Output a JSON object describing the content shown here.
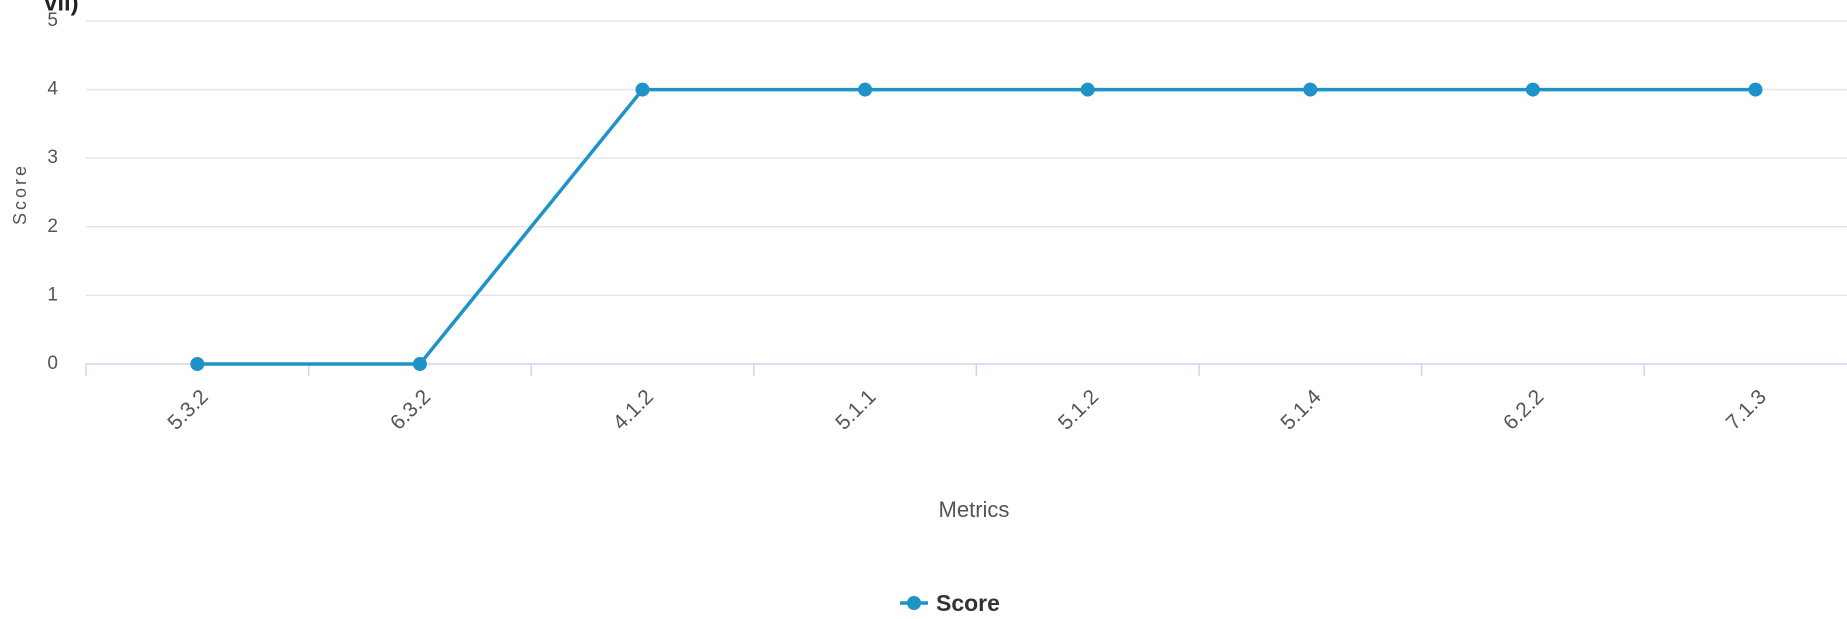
{
  "chart_data": {
    "type": "line",
    "title": "vii)",
    "x_label": "Metrics",
    "y_label": "Score",
    "categories": [
      "5.3.2",
      "6.3.2",
      "4.1.2",
      "5.1.1",
      "5.1.2",
      "5.1.4",
      "6.2.2",
      "7.1.3"
    ],
    "series": [
      {
        "name": "Score",
        "color": "#1f93c8",
        "values": [
          0,
          0,
          4,
          4,
          4,
          4,
          4,
          4
        ]
      }
    ],
    "ylim": [
      0,
      5
    ],
    "yticks": [
      0,
      1,
      2,
      3,
      4,
      5
    ],
    "grid": true,
    "legend": "bottom"
  }
}
